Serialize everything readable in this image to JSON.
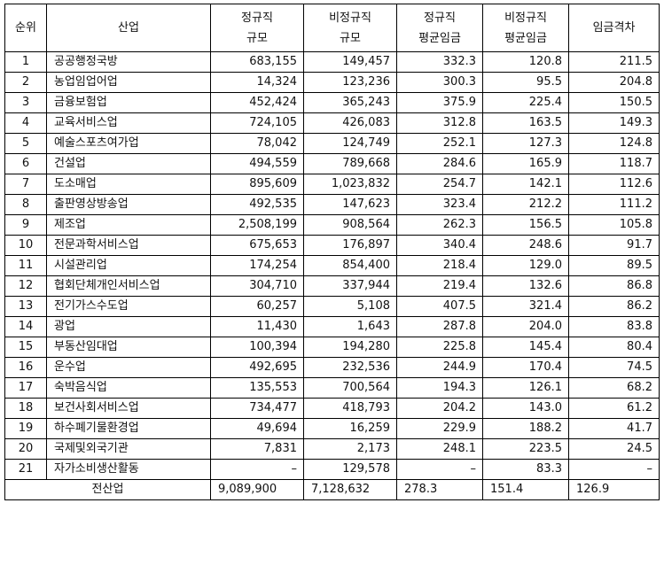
{
  "headers": [
    {
      "lines": [
        "순위"
      ]
    },
    {
      "lines": [
        "산업"
      ]
    },
    {
      "lines": [
        "정규직",
        "규모"
      ]
    },
    {
      "lines": [
        "비정규직",
        "규모"
      ]
    },
    {
      "lines": [
        "정규직",
        "평균임금"
      ]
    },
    {
      "lines": [
        "비정규직",
        "평균임금"
      ]
    },
    {
      "lines": [
        "임금격차"
      ]
    }
  ],
  "rows": [
    {
      "rank": "1",
      "industry": "공공행정국방",
      "reg": "683,155",
      "nonreg": "149,457",
      "reg_wage": "332.3",
      "nonreg_wage": "120.8",
      "gap": "211.5"
    },
    {
      "rank": "2",
      "industry": "농업임업어업",
      "reg": "14,324",
      "nonreg": "123,236",
      "reg_wage": "300.3",
      "nonreg_wage": "95.5",
      "gap": "204.8"
    },
    {
      "rank": "3",
      "industry": "금융보험업",
      "reg": "452,424",
      "nonreg": "365,243",
      "reg_wage": "375.9",
      "nonreg_wage": "225.4",
      "gap": "150.5"
    },
    {
      "rank": "4",
      "industry": "교육서비스업",
      "reg": "724,105",
      "nonreg": "426,083",
      "reg_wage": "312.8",
      "nonreg_wage": "163.5",
      "gap": "149.3"
    },
    {
      "rank": "5",
      "industry": "예술스포츠여가업",
      "reg": "78,042",
      "nonreg": "124,749",
      "reg_wage": "252.1",
      "nonreg_wage": "127.3",
      "gap": "124.8"
    },
    {
      "rank": "6",
      "industry": "건설업",
      "reg": "494,559",
      "nonreg": "789,668",
      "reg_wage": "284.6",
      "nonreg_wage": "165.9",
      "gap": "118.7"
    },
    {
      "rank": "7",
      "industry": "도소매업",
      "reg": "895,609",
      "nonreg": "1,023,832",
      "reg_wage": "254.7",
      "nonreg_wage": "142.1",
      "gap": "112.6"
    },
    {
      "rank": "8",
      "industry": "출판영상방송업",
      "reg": "492,535",
      "nonreg": "147,623",
      "reg_wage": "323.4",
      "nonreg_wage": "212.2",
      "gap": "111.2"
    },
    {
      "rank": "9",
      "industry": "제조업",
      "reg": "2,508,199",
      "nonreg": "908,564",
      "reg_wage": "262.3",
      "nonreg_wage": "156.5",
      "gap": "105.8"
    },
    {
      "rank": "10",
      "industry": "전문과학서비스업",
      "reg": "675,653",
      "nonreg": "176,897",
      "reg_wage": "340.4",
      "nonreg_wage": "248.6",
      "gap": "91.7"
    },
    {
      "rank": "11",
      "industry": "시설관리업",
      "reg": "174,254",
      "nonreg": "854,400",
      "reg_wage": "218.4",
      "nonreg_wage": "129.0",
      "gap": "89.5"
    },
    {
      "rank": "12",
      "industry": "협회단체개인서비스업",
      "reg": "304,710",
      "nonreg": "337,944",
      "reg_wage": "219.4",
      "nonreg_wage": "132.6",
      "gap": "86.8"
    },
    {
      "rank": "13",
      "industry": "전기가스수도업",
      "reg": "60,257",
      "nonreg": "5,108",
      "reg_wage": "407.5",
      "nonreg_wage": "321.4",
      "gap": "86.2"
    },
    {
      "rank": "14",
      "industry": "광업",
      "reg": "11,430",
      "nonreg": "1,643",
      "reg_wage": "287.8",
      "nonreg_wage": "204.0",
      "gap": "83.8"
    },
    {
      "rank": "15",
      "industry": "부동산임대업",
      "reg": "100,394",
      "nonreg": "194,280",
      "reg_wage": "225.8",
      "nonreg_wage": "145.4",
      "gap": "80.4"
    },
    {
      "rank": "16",
      "industry": "운수업",
      "reg": "492,695",
      "nonreg": "232,536",
      "reg_wage": "244.9",
      "nonreg_wage": "170.4",
      "gap": "74.5"
    },
    {
      "rank": "17",
      "industry": "숙박음식업",
      "reg": "135,553",
      "nonreg": "700,564",
      "reg_wage": "194.3",
      "nonreg_wage": "126.1",
      "gap": "68.2"
    },
    {
      "rank": "18",
      "industry": "보건사회서비스업",
      "reg": "734,477",
      "nonreg": "418,793",
      "reg_wage": "204.2",
      "nonreg_wage": "143.0",
      "gap": "61.2"
    },
    {
      "rank": "19",
      "industry": "하수폐기물환경업",
      "reg": "49,694",
      "nonreg": "16,259",
      "reg_wage": "229.9",
      "nonreg_wage": "188.2",
      "gap": "41.7"
    },
    {
      "rank": "20",
      "industry": "국제및외국기관",
      "reg": "7,831",
      "nonreg": "2,173",
      "reg_wage": "248.1",
      "nonreg_wage": "223.5",
      "gap": "24.5"
    },
    {
      "rank": "21",
      "industry": "자가소비생산활동",
      "reg": "–",
      "nonreg": "129,578",
      "reg_wage": "–",
      "nonreg_wage": "83.3",
      "gap": "–"
    }
  ],
  "total": {
    "label": "전산업",
    "reg": "9,089,900",
    "nonreg": "7,128,632",
    "reg_wage": "278.3",
    "nonreg_wage": "151.4",
    "gap": "126.9"
  }
}
